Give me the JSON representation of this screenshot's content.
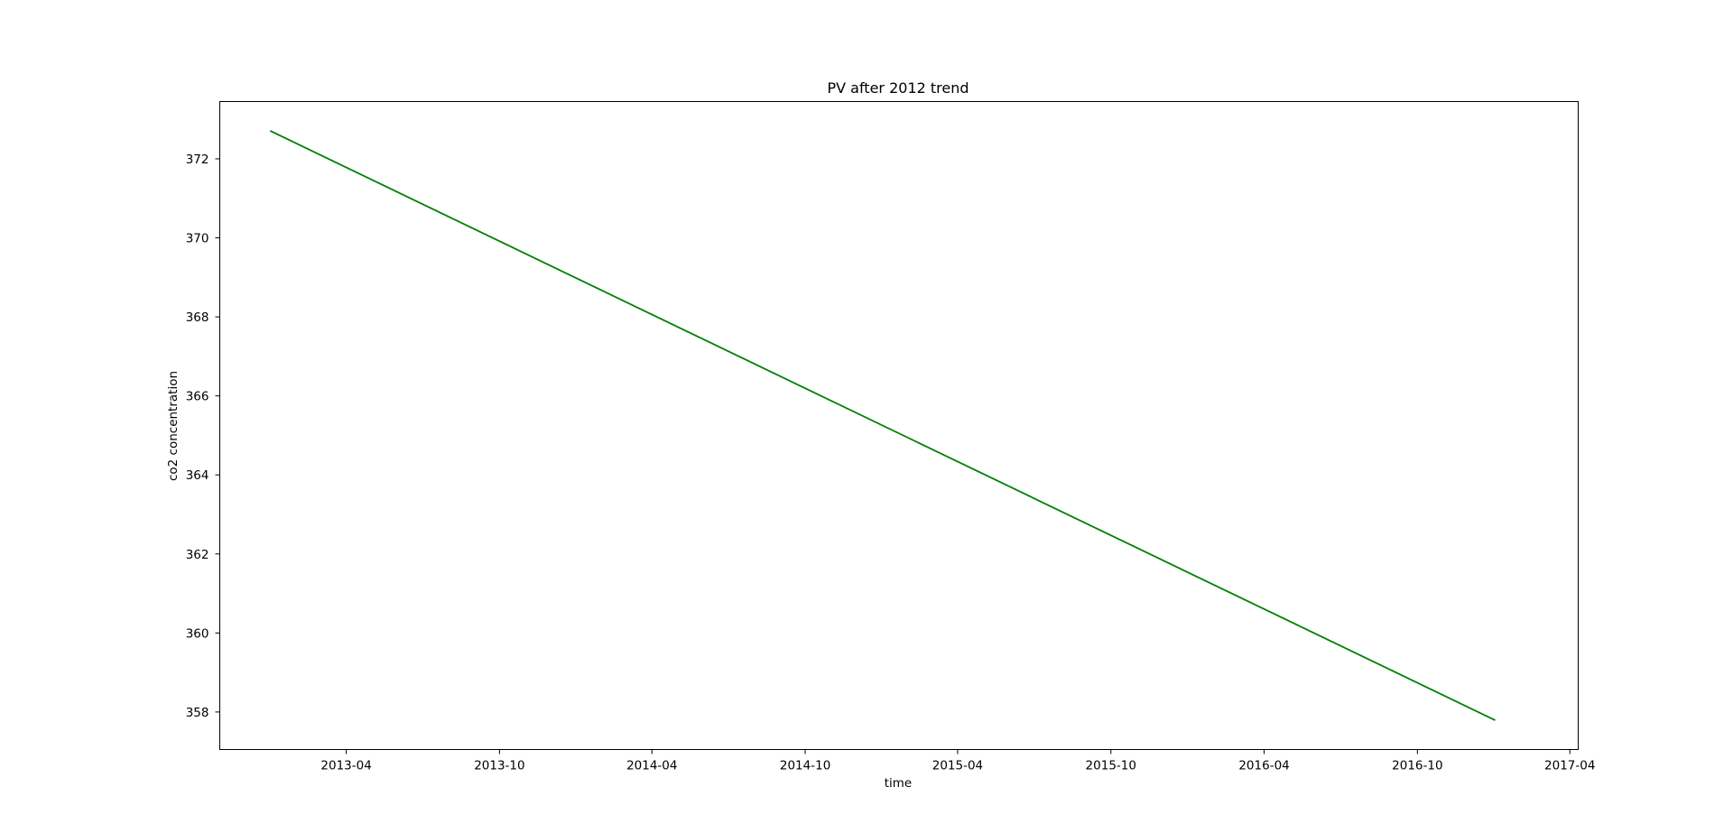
{
  "chart_data": {
    "type": "line",
    "title": "PV after 2012 trend",
    "xlabel": "time",
    "ylabel": "co2 concentration",
    "x_type": "date",
    "x_tick_labels": [
      "2013-04",
      "2013-10",
      "2014-04",
      "2014-10",
      "2015-04",
      "2015-10",
      "2016-04",
      "2016-10",
      "2017-04"
    ],
    "x_tick_dates": [
      "2013-04-01",
      "2013-10-01",
      "2014-04-01",
      "2014-10-01",
      "2015-04-01",
      "2015-10-01",
      "2016-04-01",
      "2016-10-01",
      "2017-04-01"
    ],
    "xlim": [
      "2012-11-01",
      "2017-04-11"
    ],
    "y_ticks": [
      358,
      360,
      362,
      364,
      366,
      368,
      370,
      372
    ],
    "ylim": [
      357.05,
      373.45
    ],
    "grid": false,
    "series": [
      {
        "color": "#008000",
        "x": [
          "2013-01-01",
          "2017-01-01"
        ],
        "y": [
          372.7,
          357.8
        ]
      }
    ]
  }
}
